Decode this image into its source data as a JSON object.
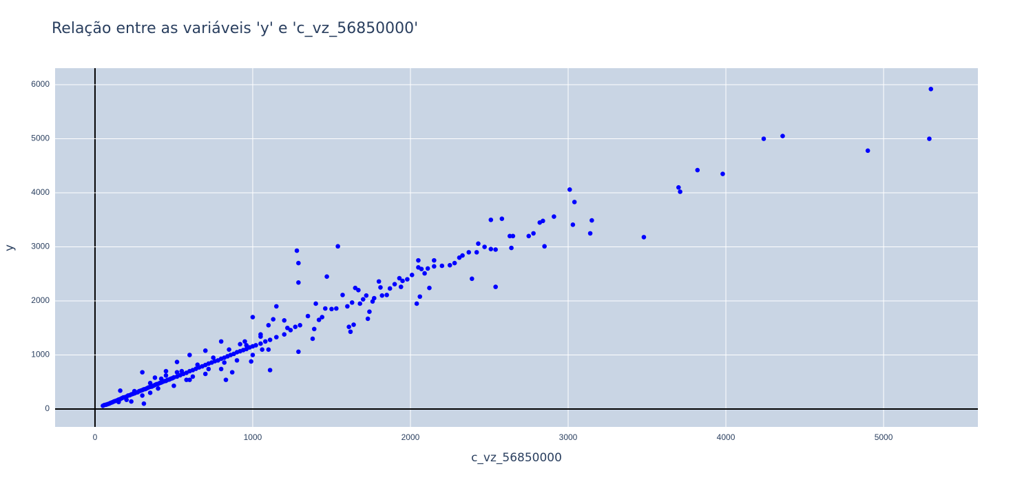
{
  "chart_data": {
    "type": "scatter",
    "title": "Relação entre as variáveis 'y' e 'c_vz_56850000'",
    "x_label": "c_vz_56850000",
    "y_label": "y",
    "color": "#0000ff",
    "grid": true,
    "xlim": [
      -253,
      5598
    ],
    "ylim": [
      -331,
      6306
    ],
    "xticks": [
      0,
      1000,
      2000,
      3000,
      4000,
      5000
    ],
    "yticks": [
      0,
      1000,
      2000,
      3000,
      4000,
      5000,
      6000
    ],
    "x": [
      5300,
      5290,
      4900,
      4360,
      4240,
      3980,
      3820,
      3700,
      3710,
      3480,
      3150,
      3140,
      3040,
      3030,
      3010,
      2910,
      2850,
      2840,
      2820,
      2780,
      2750,
      2650,
      2630,
      2640,
      2580,
      2540,
      2540,
      2510,
      2510,
      2470,
      2430,
      2420,
      2390,
      2370,
      2330,
      2310,
      2280,
      2250,
      2200,
      2150,
      2150,
      2110,
      2120,
      2090,
      2070,
      2060,
      2050,
      2050,
      2040,
      2010,
      1980,
      1950,
      1940,
      1930,
      1900,
      1870,
      1850,
      1820,
      1810,
      1800,
      1770,
      1760,
      1740,
      1730,
      1720,
      1700,
      1680,
      1670,
      1650,
      1640,
      1630,
      1620,
      1610,
      1600,
      1570,
      1540,
      1530,
      1500,
      1470,
      1460,
      1440,
      1420,
      1400,
      1390,
      1380,
      1350,
      1300,
      1290,
      1280,
      1290,
      1270,
      1290,
      1240,
      1220,
      1200,
      1150,
      1110,
      1130,
      1100,
      1050,
      1060,
      1000,
      990,
      960,
      870,
      830,
      800,
      700,
      600,
      580,
      520,
      450,
      380,
      310,
      300,
      230,
      160,
      50,
      60,
      70,
      80,
      90,
      100,
      110,
      120,
      130,
      140,
      150,
      160,
      170,
      180,
      190,
      200,
      210,
      220,
      230,
      240,
      250,
      260,
      270,
      280,
      290,
      300,
      310,
      320,
      330,
      340,
      350,
      360,
      370,
      380,
      390,
      400,
      410,
      420,
      430,
      440,
      450,
      460,
      470,
      480,
      490,
      500,
      520,
      540,
      560,
      580,
      600,
      620,
      640,
      660,
      680,
      700,
      720,
      740,
      760,
      780,
      800,
      820,
      840,
      860,
      880,
      900,
      920,
      940,
      960,
      980,
      1000,
      1020,
      1050,
      1080,
      1110,
      1150,
      1200,
      300,
      350,
      400,
      450,
      500,
      550,
      600,
      650,
      700,
      750,
      800,
      850,
      900,
      950,
      1000,
      1050,
      1100,
      200,
      250,
      150,
      350,
      420,
      520,
      620,
      720,
      820,
      920
    ],
    "y": [
      5920,
      5000,
      4780,
      5050,
      5000,
      4350,
      4420,
      4100,
      4020,
      3180,
      3490,
      3250,
      3830,
      3410,
      4060,
      3560,
      3010,
      3480,
      3450,
      3250,
      3200,
      3200,
      3200,
      2980,
      3520,
      2260,
      2950,
      3500,
      2960,
      3000,
      3060,
      2900,
      2410,
      2900,
      2840,
      2800,
      2700,
      2660,
      2650,
      2750,
      2640,
      2600,
      2240,
      2510,
      2590,
      2080,
      2750,
      2620,
      1950,
      2480,
      2400,
      2370,
      2260,
      2420,
      2310,
      2230,
      2110,
      2100,
      2250,
      2360,
      2050,
      1990,
      1800,
      1670,
      2100,
      2030,
      1950,
      2200,
      2240,
      1560,
      1970,
      1430,
      1520,
      1900,
      2110,
      3010,
      1860,
      1850,
      2450,
      1860,
      1700,
      1650,
      1950,
      1480,
      1300,
      1720,
      1550,
      2700,
      2930,
      2340,
      1520,
      1060,
      1460,
      1500,
      1640,
      1900,
      720,
      1660,
      1550,
      1340,
      1100,
      1700,
      880,
      1180,
      680,
      540,
      1250,
      1080,
      1000,
      540,
      870,
      700,
      580,
      100,
      680,
      140,
      340,
      60,
      75,
      80,
      90,
      100,
      115,
      125,
      140,
      150,
      160,
      175,
      185,
      200,
      215,
      220,
      230,
      250,
      255,
      270,
      280,
      290,
      305,
      310,
      330,
      340,
      350,
      365,
      370,
      385,
      400,
      410,
      415,
      430,
      445,
      460,
      465,
      480,
      490,
      505,
      515,
      520,
      540,
      545,
      560,
      570,
      585,
      600,
      625,
      650,
      670,
      700,
      720,
      745,
      770,
      790,
      815,
      840,
      860,
      885,
      900,
      930,
      950,
      975,
      1000,
      1020,
      1050,
      1070,
      1090,
      1110,
      1140,
      1160,
      1180,
      1210,
      1250,
      1280,
      1330,
      1380,
      250,
      480,
      380,
      620,
      430,
      700,
      540,
      820,
      650,
      950,
      740,
      1100,
      900,
      1250,
      1000,
      1380,
      1100,
      170,
      330,
      130,
      300,
      560,
      680,
      600,
      740,
      860,
      1200
    ]
  }
}
